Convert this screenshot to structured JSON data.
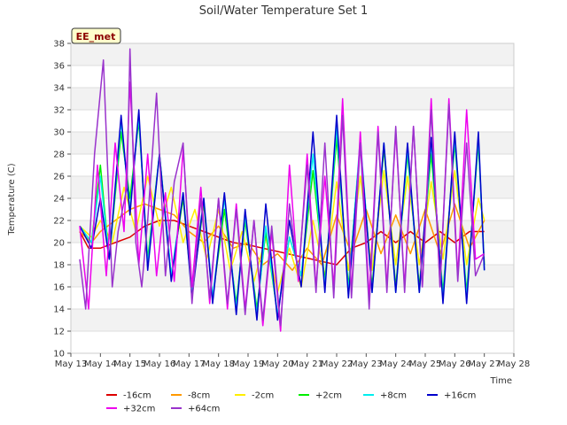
{
  "chart_data": {
    "type": "line",
    "title": "Soil/Water Temperature Set 1",
    "xlabel": "Time",
    "ylabel": "Temperature (C)",
    "badge": "EE_met",
    "x_ticks": [
      "May 13",
      "May 14",
      "May 15",
      "May 16",
      "May 17",
      "May 18",
      "May 19",
      "May 20",
      "May 21",
      "May 22",
      "May 23",
      "May 24",
      "May 25",
      "May 26",
      "May 27",
      "May 28"
    ],
    "xlim": [
      13,
      28
    ],
    "ylim": [
      10,
      38
    ],
    "y_ticks": [
      10,
      12,
      14,
      16,
      18,
      20,
      22,
      24,
      26,
      28,
      30,
      32,
      34,
      36,
      38
    ],
    "grid": true,
    "legend_position": "bottom",
    "series": [
      {
        "name": "-16cm",
        "color": "#dd0000",
        "x": [
          13.3,
          13.6,
          14.0,
          14.5,
          15.0,
          15.5,
          16.0,
          16.5,
          17.0,
          17.5,
          18.0,
          18.5,
          19.0,
          19.5,
          20.0,
          20.5,
          21.0,
          21.5,
          22.0,
          22.5,
          23.0,
          23.5,
          24.0,
          24.5,
          25.0,
          25.5,
          26.0,
          26.5,
          27.0
        ],
        "y": [
          21.0,
          19.5,
          19.5,
          20.0,
          20.5,
          21.5,
          22.0,
          22.0,
          21.5,
          21.0,
          20.5,
          20.0,
          19.8,
          19.5,
          19.2,
          18.9,
          18.6,
          18.3,
          18.0,
          19.5,
          20.0,
          21.0,
          20.0,
          21.0,
          20.0,
          21.0,
          20.0,
          21.0,
          21.0
        ]
      },
      {
        "name": "-8cm",
        "color": "#ff9900",
        "x": [
          13.3,
          13.7,
          14.0,
          14.5,
          15.0,
          15.5,
          16.0,
          16.5,
          17.0,
          17.5,
          18.0,
          18.5,
          19.0,
          19.5,
          20.0,
          20.5,
          21.0,
          21.5,
          22.0,
          22.5,
          23.0,
          23.5,
          24.0,
          24.5,
          25.0,
          25.5,
          26.0,
          26.5,
          27.0
        ],
        "y": [
          21.0,
          20.0,
          21.0,
          22.0,
          23.0,
          23.5,
          23.0,
          22.5,
          21.0,
          20.0,
          21.5,
          19.5,
          20.0,
          18.0,
          19.0,
          17.5,
          19.5,
          18.0,
          22.5,
          19.0,
          23.0,
          19.0,
          22.5,
          19.0,
          23.0,
          19.0,
          23.5,
          19.5,
          22.0
        ]
      },
      {
        "name": "-2cm",
        "color": "#ffee00",
        "x": [
          13.3,
          13.7,
          14.0,
          14.4,
          14.8,
          15.2,
          15.6,
          16.0,
          16.4,
          16.8,
          17.2,
          17.6,
          18.0,
          18.4,
          18.8,
          19.2,
          19.6,
          20.0,
          20.4,
          20.8,
          21.2,
          21.6,
          22.0,
          22.4,
          22.8,
          23.2,
          23.6,
          24.0,
          24.4,
          24.8,
          25.2,
          25.6,
          26.0,
          26.4,
          26.8,
          27.0
        ],
        "y": [
          21.5,
          20.5,
          22.0,
          20.0,
          25.0,
          21.0,
          26.0,
          21.5,
          25.0,
          20.0,
          23.0,
          18.5,
          23.0,
          17.5,
          21.0,
          16.5,
          20.5,
          15.5,
          19.5,
          16.0,
          22.0,
          17.0,
          25.5,
          17.5,
          26.0,
          17.5,
          26.5,
          18.0,
          26.0,
          18.0,
          25.5,
          18.5,
          26.5,
          18.0,
          24.0,
          22.0
        ]
      },
      {
        "name": "+2cm",
        "color": "#00ee00",
        "x": [
          13.3,
          13.7,
          14.0,
          14.3,
          14.7,
          15.0,
          15.3,
          15.6,
          16.0,
          16.4,
          16.8,
          17.1,
          17.5,
          17.8,
          18.2,
          18.6,
          18.9,
          19.3,
          19.6,
          20.0,
          20.4,
          20.8,
          21.2,
          21.6,
          22.0,
          22.4,
          22.8,
          23.2,
          23.6,
          24.0,
          24.4,
          24.8,
          25.2,
          25.6,
          26.0,
          26.4,
          26.8,
          27.0
        ],
        "y": [
          21.5,
          20.0,
          27.0,
          18.5,
          30.0,
          24.0,
          31.0,
          18.5,
          28.0,
          17.0,
          24.0,
          15.5,
          23.5,
          15.0,
          23.0,
          14.5,
          22.0,
          14.0,
          21.0,
          13.5,
          20.5,
          17.0,
          26.5,
          16.5,
          29.5,
          16.0,
          29.0,
          16.0,
          28.5,
          16.0,
          28.0,
          16.0,
          28.0,
          15.5,
          29.0,
          15.5,
          29.0,
          18.0
        ]
      },
      {
        "name": "+8cm",
        "color": "#00eeee",
        "x": [
          13.3,
          13.7,
          14.0,
          14.3,
          14.7,
          15.0,
          15.3,
          15.6,
          16.0,
          16.4,
          16.8,
          17.1,
          17.5,
          17.8,
          18.2,
          18.6,
          18.9,
          19.3,
          19.6,
          20.0,
          20.4,
          20.8,
          21.2,
          21.6,
          22.0,
          22.4,
          22.8,
          23.2,
          23.6,
          24.0,
          24.4,
          24.8,
          25.2,
          25.6,
          26.0,
          26.4,
          26.8,
          27.0
        ],
        "y": [
          21.5,
          20.0,
          26.0,
          18.5,
          31.0,
          23.0,
          31.5,
          18.0,
          28.0,
          17.0,
          24.5,
          15.5,
          24.0,
          15.0,
          24.0,
          14.0,
          22.5,
          13.5,
          21.5,
          13.5,
          20.5,
          17.0,
          28.0,
          16.0,
          30.5,
          15.5,
          29.5,
          15.5,
          29.0,
          15.5,
          28.5,
          15.5,
          29.0,
          15.0,
          29.5,
          15.0,
          29.5,
          17.5
        ]
      },
      {
        "name": "+16cm",
        "color": "#0000cc",
        "x": [
          13.3,
          13.7,
          14.0,
          14.3,
          14.7,
          15.0,
          15.3,
          15.6,
          16.0,
          16.4,
          16.8,
          17.1,
          17.5,
          17.8,
          18.2,
          18.6,
          18.9,
          19.3,
          19.6,
          20.0,
          20.4,
          20.8,
          21.2,
          21.6,
          22.0,
          22.4,
          22.8,
          23.2,
          23.6,
          24.0,
          24.4,
          24.8,
          25.2,
          25.6,
          26.0,
          26.4,
          26.8,
          27.0
        ],
        "y": [
          21.5,
          19.5,
          24.0,
          18.5,
          31.5,
          22.5,
          32.0,
          17.5,
          28.0,
          16.5,
          24.5,
          15.0,
          24.0,
          14.5,
          24.5,
          13.5,
          23.0,
          13.0,
          23.5,
          13.0,
          22.0,
          16.0,
          30.0,
          15.5,
          31.5,
          15.0,
          29.0,
          15.5,
          29.0,
          15.5,
          29.0,
          15.5,
          29.5,
          14.5,
          30.0,
          14.5,
          30.0,
          17.5
        ]
      },
      {
        "name": "+32cm",
        "color": "#ee00ee",
        "x": [
          13.3,
          13.6,
          13.9,
          14.2,
          14.5,
          14.8,
          15.0,
          15.3,
          15.6,
          15.9,
          16.2,
          16.5,
          16.8,
          17.1,
          17.4,
          17.7,
          18.0,
          18.3,
          18.6,
          18.9,
          19.2,
          19.5,
          19.8,
          20.1,
          20.4,
          20.7,
          21.0,
          21.3,
          21.6,
          21.9,
          22.2,
          22.5,
          22.8,
          23.1,
          23.4,
          23.7,
          24.0,
          24.3,
          24.6,
          24.9,
          25.2,
          25.5,
          25.8,
          26.1,
          26.4,
          26.7,
          27.0
        ],
        "y": [
          21.5,
          14.0,
          27.0,
          17.0,
          29.0,
          21.0,
          34.5,
          18.0,
          28.0,
          17.0,
          24.5,
          16.5,
          28.5,
          16.0,
          25.0,
          14.5,
          24.0,
          14.0,
          23.5,
          14.0,
          22.0,
          12.5,
          21.0,
          12.0,
          27.0,
          16.5,
          28.0,
          16.0,
          26.0,
          16.0,
          33.0,
          15.5,
          30.0,
          15.0,
          30.5,
          16.0,
          30.0,
          16.0,
          30.5,
          16.0,
          33.0,
          16.0,
          33.0,
          17.0,
          32.0,
          18.5,
          19.0
        ]
      },
      {
        "name": "+64cm",
        "color": "#9933cc",
        "x": [
          13.3,
          13.5,
          13.8,
          14.1,
          14.4,
          14.6,
          14.9,
          15.0,
          15.2,
          15.4,
          15.6,
          15.9,
          16.2,
          16.5,
          16.8,
          17.1,
          17.4,
          17.7,
          18.0,
          18.3,
          18.6,
          18.9,
          19.2,
          19.5,
          19.8,
          20.1,
          20.4,
          20.7,
          21.0,
          21.3,
          21.6,
          21.9,
          22.2,
          22.5,
          22.8,
          23.1,
          23.4,
          23.7,
          24.0,
          24.3,
          24.6,
          24.9,
          25.2,
          25.5,
          25.8,
          26.1,
          26.4,
          26.7,
          27.0
        ],
        "y": [
          18.5,
          14.0,
          28.0,
          36.5,
          16.0,
          21.0,
          25.0,
          37.5,
          20.0,
          16.0,
          22.0,
          33.5,
          17.0,
          25.5,
          29.0,
          14.5,
          24.0,
          15.0,
          24.0,
          14.5,
          23.0,
          13.5,
          22.0,
          13.0,
          21.5,
          12.5,
          23.5,
          17.0,
          27.0,
          15.5,
          29.0,
          15.0,
          31.5,
          15.0,
          29.0,
          14.0,
          30.0,
          15.5,
          30.5,
          15.5,
          30.5,
          16.0,
          32.0,
          16.0,
          32.5,
          16.5,
          29.0,
          17.0,
          19.0
        ]
      }
    ]
  }
}
